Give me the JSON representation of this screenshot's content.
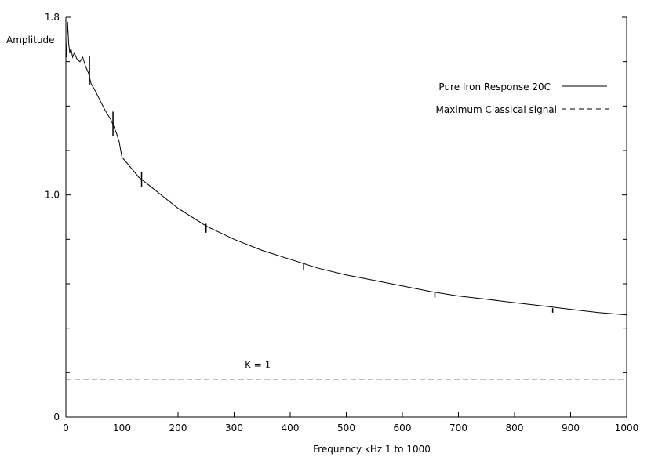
{
  "chart_data": {
    "type": "line",
    "title": "",
    "xlabel": "Frequency kHz   1 to  1000",
    "ylabel": "Amplitude",
    "xlim": [
      0,
      1000
    ],
    "ylim": [
      0,
      1.8
    ],
    "x_ticks": [
      0,
      100,
      200,
      300,
      400,
      500,
      600,
      700,
      800,
      900,
      1000
    ],
    "x_tick_labels": [
      "0",
      "100",
      "200",
      "300",
      "400",
      "500",
      "600",
      "700",
      "800",
      "900",
      "1000"
    ],
    "y_tick_values": [
      0,
      1.0,
      1.8
    ],
    "y_tick_labels": [
      "0",
      "1.0",
      "1.8"
    ],
    "y_minor_ticks": [
      0.2,
      0.4,
      0.6,
      0.8,
      1.2,
      1.4,
      1.6
    ],
    "grid": false,
    "legend_position": "top-right",
    "series": [
      {
        "name": "Pure Iron Response  20C",
        "style": "solid",
        "color": "#000000",
        "x": [
          1,
          3,
          5,
          7,
          9,
          12,
          15,
          20,
          25,
          30,
          35,
          40,
          45,
          50,
          60,
          70,
          80,
          90,
          95,
          100,
          110,
          120,
          130,
          150,
          175,
          200,
          250,
          300,
          350,
          400,
          450,
          500,
          550,
          600,
          650,
          700,
          750,
          800,
          850,
          900,
          950,
          1000
        ],
        "y": [
          1.62,
          1.78,
          1.68,
          1.64,
          1.66,
          1.62,
          1.64,
          1.61,
          1.6,
          1.62,
          1.58,
          1.55,
          1.5,
          1.48,
          1.43,
          1.38,
          1.34,
          1.28,
          1.24,
          1.17,
          1.14,
          1.11,
          1.08,
          1.04,
          0.99,
          0.94,
          0.86,
          0.8,
          0.75,
          0.71,
          0.67,
          0.64,
          0.615,
          0.59,
          0.565,
          0.545,
          0.53,
          0.515,
          0.5,
          0.485,
          0.47,
          0.46
        ]
      },
      {
        "name": "Maximum Classical signal",
        "style": "dashed",
        "color": "#000000",
        "x": [
          0,
          1000
        ],
        "y": [
          0.17,
          0.17
        ]
      }
    ],
    "error_bars": [
      {
        "x": 42,
        "y": 1.56,
        "half": 0.065
      },
      {
        "x": 84,
        "y": 1.32,
        "half": 0.055
      },
      {
        "x": 135,
        "y": 1.07,
        "half": 0.035
      },
      {
        "x": 250,
        "y": 0.85,
        "half": 0.02
      },
      {
        "x": 424,
        "y": 0.675,
        "half": 0.015
      },
      {
        "x": 658,
        "y": 0.55,
        "half": 0.012
      },
      {
        "x": 868,
        "y": 0.48,
        "half": 0.01
      }
    ],
    "annotations": [
      {
        "text": "K = 1",
        "x": 340,
        "y": 0.22
      }
    ]
  }
}
